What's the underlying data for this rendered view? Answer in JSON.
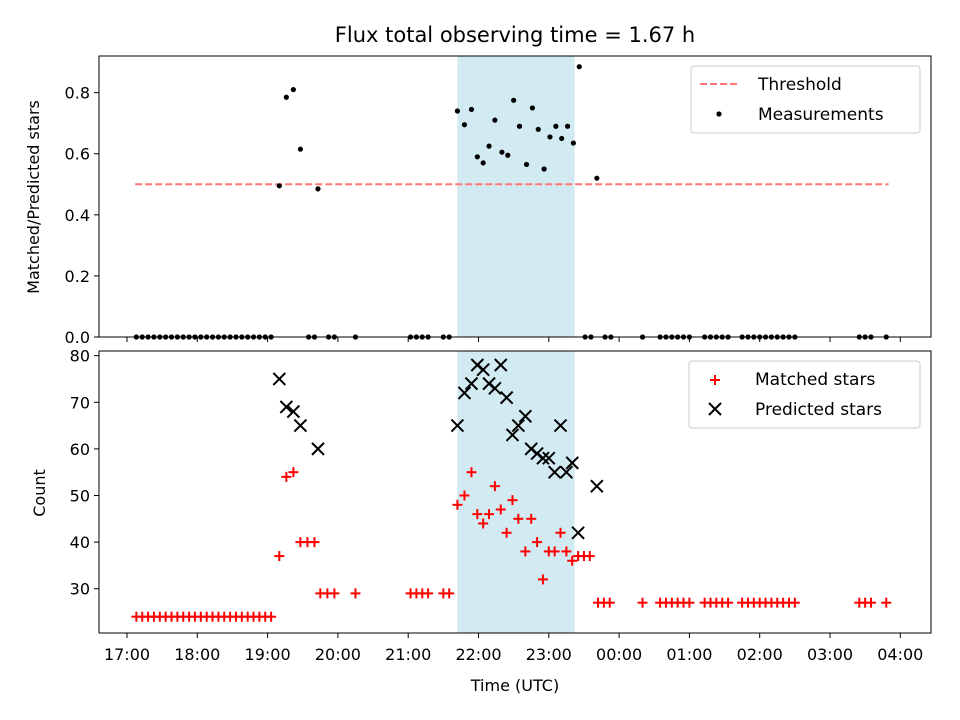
{
  "chart_data": [
    {
      "type": "scatter",
      "title": "Flux total observing time = 1.67 h",
      "ylabel": "Matched/Predicted stars",
      "xlabel": "",
      "xlim": [
        "17:00",
        "04:00"
      ],
      "ylim": [
        0,
        0.92
      ],
      "yticks": [
        0.0,
        0.2,
        0.4,
        0.6,
        0.8
      ],
      "ytick_labels": [
        "0.0",
        "0.2",
        "0.4",
        "0.6",
        "0.8"
      ],
      "highlight_span": [
        "21:42",
        "23:22"
      ],
      "legend": {
        "position": "top-right",
        "entries": [
          "Threshold",
          "Measurements"
        ]
      },
      "threshold": {
        "name": "Threshold",
        "value": 0.5,
        "x_range": [
          "17:07",
          "03:50"
        ],
        "color": "#ff7777"
      },
      "series": [
        {
          "name": "Measurements",
          "color": "#000000",
          "points": [
            [
              "17:08",
              0
            ],
            [
              "17:13",
              0
            ],
            [
              "17:18",
              0
            ],
            [
              "17:23",
              0
            ],
            [
              "17:28",
              0
            ],
            [
              "17:33",
              0
            ],
            [
              "17:38",
              0
            ],
            [
              "17:43",
              0
            ],
            [
              "17:48",
              0
            ],
            [
              "17:53",
              0
            ],
            [
              "17:58",
              0
            ],
            [
              "18:03",
              0
            ],
            [
              "18:08",
              0
            ],
            [
              "18:13",
              0
            ],
            [
              "18:18",
              0
            ],
            [
              "18:23",
              0
            ],
            [
              "18:28",
              0
            ],
            [
              "18:33",
              0
            ],
            [
              "18:38",
              0
            ],
            [
              "18:43",
              0
            ],
            [
              "18:48",
              0
            ],
            [
              "18:53",
              0
            ],
            [
              "18:58",
              0
            ],
            [
              "19:03",
              0
            ],
            [
              "19:10",
              0.495
            ],
            [
              "19:16",
              0.785
            ],
            [
              "19:22",
              0.81
            ],
            [
              "19:28",
              0.615
            ],
            [
              "19:35",
              0
            ],
            [
              "19:40",
              0
            ],
            [
              "19:43",
              0.485
            ],
            [
              "19:52",
              0
            ],
            [
              "19:57",
              0
            ],
            [
              "20:15",
              0
            ],
            [
              "21:02",
              0
            ],
            [
              "21:07",
              0
            ],
            [
              "21:12",
              0
            ],
            [
              "21:17",
              0
            ],
            [
              "21:30",
              0
            ],
            [
              "21:35",
              0
            ],
            [
              "21:42",
              0.74
            ],
            [
              "21:48",
              0.695
            ],
            [
              "21:54",
              0.745
            ],
            [
              "21:59",
              0.59
            ],
            [
              "22:04",
              0.57
            ],
            [
              "22:09",
              0.625
            ],
            [
              "22:14",
              0.71
            ],
            [
              "22:20",
              0.605
            ],
            [
              "22:25",
              0.595
            ],
            [
              "22:30",
              0.775
            ],
            [
              "22:35",
              0.69
            ],
            [
              "22:41",
              0.565
            ],
            [
              "22:46",
              0.75
            ],
            [
              "22:51",
              0.68
            ],
            [
              "22:56",
              0.55
            ],
            [
              "23:01",
              0.655
            ],
            [
              "23:06",
              0.69
            ],
            [
              "23:11",
              0.65
            ],
            [
              "23:16",
              0.69
            ],
            [
              "23:21",
              0.635
            ],
            [
              "23:26",
              0.885
            ],
            [
              "23:31",
              0
            ],
            [
              "23:36",
              0
            ],
            [
              "23:41",
              0.52
            ],
            [
              "23:48",
              0
            ],
            [
              "23:53",
              0
            ],
            [
              "00:20",
              0
            ],
            [
              "00:35",
              0
            ],
            [
              "00:40",
              0
            ],
            [
              "00:45",
              0
            ],
            [
              "00:50",
              0
            ],
            [
              "00:55",
              0
            ],
            [
              "01:00",
              0
            ],
            [
              "01:13",
              0
            ],
            [
              "01:18",
              0
            ],
            [
              "01:23",
              0
            ],
            [
              "01:28",
              0
            ],
            [
              "01:33",
              0
            ],
            [
              "01:45",
              0
            ],
            [
              "01:50",
              0
            ],
            [
              "01:55",
              0
            ],
            [
              "02:00",
              0
            ],
            [
              "02:05",
              0
            ],
            [
              "02:10",
              0
            ],
            [
              "02:15",
              0
            ],
            [
              "02:20",
              0
            ],
            [
              "02:25",
              0
            ],
            [
              "02:30",
              0
            ],
            [
              "03:25",
              0
            ],
            [
              "03:30",
              0
            ],
            [
              "03:35",
              0
            ],
            [
              "03:48",
              0
            ]
          ]
        }
      ]
    },
    {
      "type": "scatter",
      "title": "",
      "ylabel": "Count",
      "xlabel": "Time (UTC)",
      "xlim": [
        "17:00",
        "04:00"
      ],
      "xticks": [
        "17:00",
        "18:00",
        "19:00",
        "20:00",
        "21:00",
        "22:00",
        "23:00",
        "00:00",
        "01:00",
        "02:00",
        "03:00",
        "04:00"
      ],
      "ylim": [
        20.5,
        81
      ],
      "yticks": [
        30,
        40,
        50,
        60,
        70,
        80
      ],
      "highlight_span": [
        "21:42",
        "23:22"
      ],
      "legend": {
        "position": "top-right",
        "entries": [
          "Matched stars",
          "Predicted stars"
        ]
      },
      "series": [
        {
          "name": "Matched stars",
          "marker": "plus",
          "color": "#ff0000",
          "points": [
            [
              "17:08",
              24
            ],
            [
              "17:13",
              24
            ],
            [
              "17:18",
              24
            ],
            [
              "17:23",
              24
            ],
            [
              "17:28",
              24
            ],
            [
              "17:33",
              24
            ],
            [
              "17:38",
              24
            ],
            [
              "17:43",
              24
            ],
            [
              "17:48",
              24
            ],
            [
              "17:53",
              24
            ],
            [
              "17:58",
              24
            ],
            [
              "18:03",
              24
            ],
            [
              "18:08",
              24
            ],
            [
              "18:13",
              24
            ],
            [
              "18:18",
              24
            ],
            [
              "18:23",
              24
            ],
            [
              "18:28",
              24
            ],
            [
              "18:33",
              24
            ],
            [
              "18:38",
              24
            ],
            [
              "18:43",
              24
            ],
            [
              "18:48",
              24
            ],
            [
              "18:53",
              24
            ],
            [
              "18:58",
              24
            ],
            [
              "19:03",
              24
            ],
            [
              "19:10",
              37
            ],
            [
              "19:16",
              54
            ],
            [
              "19:22",
              55
            ],
            [
              "19:28",
              40
            ],
            [
              "19:34",
              40
            ],
            [
              "19:40",
              40
            ],
            [
              "19:45",
              29
            ],
            [
              "19:51",
              29
            ],
            [
              "19:57",
              29
            ],
            [
              "20:15",
              29
            ],
            [
              "21:02",
              29
            ],
            [
              "21:07",
              29
            ],
            [
              "21:12",
              29
            ],
            [
              "21:17",
              29
            ],
            [
              "21:30",
              29
            ],
            [
              "21:35",
              29
            ],
            [
              "21:42",
              48
            ],
            [
              "21:48",
              50
            ],
            [
              "21:54",
              55
            ],
            [
              "21:59",
              46
            ],
            [
              "22:04",
              44
            ],
            [
              "22:09",
              46
            ],
            [
              "22:14",
              52
            ],
            [
              "22:19",
              47
            ],
            [
              "22:24",
              42
            ],
            [
              "22:29",
              49
            ],
            [
              "22:34",
              45
            ],
            [
              "22:40",
              38
            ],
            [
              "22:45",
              45
            ],
            [
              "22:50",
              40
            ],
            [
              "22:55",
              32
            ],
            [
              "23:00",
              38
            ],
            [
              "23:05",
              38
            ],
            [
              "23:10",
              42
            ],
            [
              "23:15",
              38
            ],
            [
              "23:20",
              36
            ],
            [
              "23:25",
              37
            ],
            [
              "23:30",
              37
            ],
            [
              "23:35",
              37
            ],
            [
              "23:42",
              27
            ],
            [
              "23:47",
              27
            ],
            [
              "23:52",
              27
            ],
            [
              "00:20",
              27
            ],
            [
              "00:35",
              27
            ],
            [
              "00:40",
              27
            ],
            [
              "00:45",
              27
            ],
            [
              "00:50",
              27
            ],
            [
              "00:55",
              27
            ],
            [
              "01:00",
              27
            ],
            [
              "01:13",
              27
            ],
            [
              "01:18",
              27
            ],
            [
              "01:23",
              27
            ],
            [
              "01:28",
              27
            ],
            [
              "01:33",
              27
            ],
            [
              "01:45",
              27
            ],
            [
              "01:50",
              27
            ],
            [
              "01:55",
              27
            ],
            [
              "02:00",
              27
            ],
            [
              "02:05",
              27
            ],
            [
              "02:10",
              27
            ],
            [
              "02:15",
              27
            ],
            [
              "02:20",
              27
            ],
            [
              "02:25",
              27
            ],
            [
              "02:30",
              27
            ],
            [
              "03:25",
              27
            ],
            [
              "03:30",
              27
            ],
            [
              "03:35",
              27
            ],
            [
              "03:48",
              27
            ]
          ]
        },
        {
          "name": "Predicted stars",
          "marker": "x",
          "color": "#000000",
          "points": [
            [
              "19:10",
              75
            ],
            [
              "19:16",
              69
            ],
            [
              "19:22",
              68
            ],
            [
              "19:28",
              65
            ],
            [
              "19:43",
              60
            ],
            [
              "21:42",
              65
            ],
            [
              "21:48",
              72
            ],
            [
              "21:54",
              74
            ],
            [
              "21:59",
              78
            ],
            [
              "22:04",
              77
            ],
            [
              "22:09",
              74
            ],
            [
              "22:14",
              73
            ],
            [
              "22:19",
              78
            ],
            [
              "22:24",
              71
            ],
            [
              "22:29",
              63
            ],
            [
              "22:34",
              65
            ],
            [
              "22:40",
              67
            ],
            [
              "22:45",
              60
            ],
            [
              "22:50",
              59
            ],
            [
              "22:55",
              58
            ],
            [
              "23:00",
              58
            ],
            [
              "23:05",
              55
            ],
            [
              "23:10",
              65
            ],
            [
              "23:15",
              55
            ],
            [
              "23:20",
              57
            ],
            [
              "23:25",
              42
            ],
            [
              "23:41",
              52
            ]
          ]
        }
      ]
    }
  ]
}
